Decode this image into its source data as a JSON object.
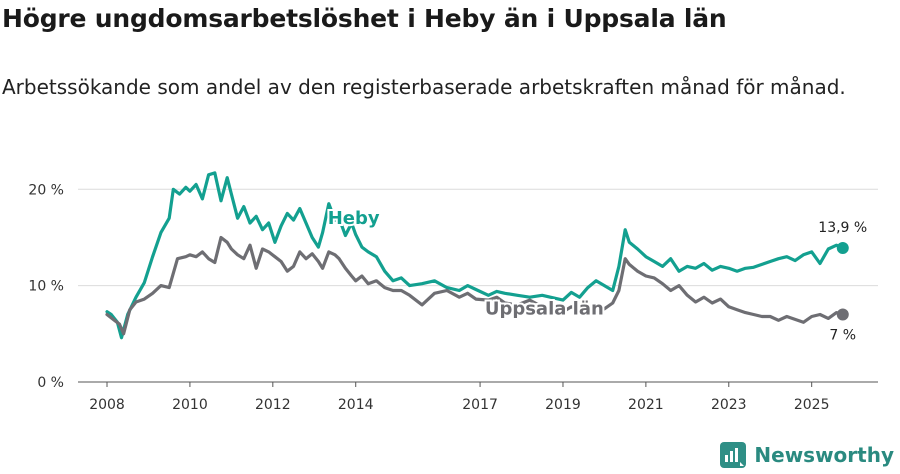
{
  "title": "Högre ungdomsarbetslöshet i Heby än i Uppsala län",
  "subtitle": "Arbetssökande som andel av den registerbaserade arbetskraften månad för månad.",
  "brand": {
    "name": "Newsworthy",
    "icon": "newsworthy-logo-icon",
    "color": "#2a8a80"
  },
  "chart_data": {
    "type": "line",
    "title": "Högre ungdomsarbetslöshet i Heby än i Uppsala län",
    "xlabel": "",
    "ylabel": "",
    "xlim": [
      2007.3,
      2026.6
    ],
    "ylim": [
      0,
      22
    ],
    "y_ticks": [
      0,
      10,
      20
    ],
    "y_tick_labels": [
      "0 %",
      "10 %",
      "20 %"
    ],
    "x_ticks": [
      2008,
      2010,
      2012,
      2014,
      2017,
      2019,
      2021,
      2023,
      2025
    ],
    "x_tick_labels": [
      "2008",
      "2010",
      "2012",
      "2014",
      "2017",
      "2019",
      "2021",
      "2023",
      "2025"
    ],
    "grid": true,
    "series": [
      {
        "name": "Heby",
        "color": "#13a090",
        "end_label": "13,9 %",
        "x": [
          2008.0,
          2008.1,
          2008.25,
          2008.35,
          2008.5,
          2008.7,
          2008.9,
          2009.1,
          2009.3,
          2009.5,
          2009.6,
          2009.75,
          2009.9,
          2010.0,
          2010.15,
          2010.3,
          2010.45,
          2010.6,
          2010.75,
          2010.9,
          2011.0,
          2011.15,
          2011.3,
          2011.45,
          2011.6,
          2011.75,
          2011.9,
          2012.05,
          2012.2,
          2012.35,
          2012.5,
          2012.65,
          2012.8,
          2012.95,
          2013.1,
          2013.2,
          2013.35,
          2013.5,
          2013.6,
          2013.75,
          2013.9,
          2014.0,
          2014.15,
          2014.3,
          2014.5,
          2014.7,
          2014.9,
          2015.1,
          2015.3,
          2015.6,
          2015.9,
          2016.2,
          2016.5,
          2016.7,
          2016.9,
          2017.2,
          2017.4,
          2017.6,
          2017.9,
          2018.2,
          2018.5,
          2018.8,
          2019.0,
          2019.2,
          2019.4,
          2019.6,
          2019.8,
          2020.0,
          2020.2,
          2020.35,
          2020.5,
          2020.6,
          2020.8,
          2021.0,
          2021.2,
          2021.4,
          2021.6,
          2021.8,
          2022.0,
          2022.2,
          2022.4,
          2022.6,
          2022.8,
          2023.0,
          2023.2,
          2023.4,
          2023.6,
          2023.8,
          2024.0,
          2024.2,
          2024.4,
          2024.6,
          2024.8,
          2025.0,
          2025.2,
          2025.4,
          2025.6,
          2025.75
        ],
        "values": [
          7.3,
          7.0,
          6.2,
          4.6,
          7.0,
          8.8,
          10.3,
          13.0,
          15.5,
          17.0,
          20.0,
          19.5,
          20.2,
          19.8,
          20.5,
          19.0,
          21.5,
          21.7,
          18.8,
          21.2,
          19.5,
          17.0,
          18.2,
          16.5,
          17.2,
          15.8,
          16.5,
          14.5,
          16.2,
          17.5,
          16.8,
          18.0,
          16.5,
          15.0,
          14.0,
          15.5,
          18.5,
          16.8,
          17.0,
          15.2,
          16.5,
          15.3,
          14.0,
          13.5,
          13.0,
          11.5,
          10.5,
          10.8,
          10.0,
          10.2,
          10.5,
          9.8,
          9.5,
          10.0,
          9.6,
          9.0,
          9.4,
          9.2,
          9.0,
          8.8,
          9.0,
          8.7,
          8.5,
          9.3,
          8.8,
          9.8,
          10.5,
          10.0,
          9.5,
          12.0,
          15.8,
          14.5,
          13.8,
          13.0,
          12.5,
          12.0,
          12.8,
          11.5,
          12.0,
          11.8,
          12.3,
          11.6,
          12.0,
          11.8,
          11.5,
          11.8,
          11.9,
          12.2,
          12.5,
          12.8,
          13.0,
          12.6,
          13.2,
          13.5,
          12.3,
          13.8,
          14.2,
          13.9
        ]
      },
      {
        "name": "Uppsala län",
        "color": "#6e6e73",
        "end_label": "7 %",
        "x": [
          2008.0,
          2008.15,
          2008.3,
          2008.4,
          2008.55,
          2008.7,
          2008.9,
          2009.1,
          2009.3,
          2009.5,
          2009.7,
          2009.9,
          2010.0,
          2010.15,
          2010.3,
          2010.45,
          2010.6,
          2010.75,
          2010.9,
          2011.0,
          2011.15,
          2011.3,
          2011.45,
          2011.6,
          2011.75,
          2011.9,
          2012.05,
          2012.2,
          2012.35,
          2012.5,
          2012.65,
          2012.8,
          2012.95,
          2013.1,
          2013.2,
          2013.35,
          2013.5,
          2013.6,
          2013.75,
          2013.9,
          2014.0,
          2014.15,
          2014.3,
          2014.5,
          2014.7,
          2014.9,
          2015.1,
          2015.3,
          2015.6,
          2015.9,
          2016.2,
          2016.5,
          2016.7,
          2016.9,
          2017.2,
          2017.4,
          2017.6,
          2017.9,
          2018.2,
          2018.5,
          2018.8,
          2019.0,
          2019.2,
          2019.4,
          2019.6,
          2019.8,
          2020.0,
          2020.2,
          2020.35,
          2020.5,
          2020.6,
          2020.8,
          2021.0,
          2021.2,
          2021.4,
          2021.6,
          2021.8,
          2022.0,
          2022.2,
          2022.4,
          2022.6,
          2022.8,
          2023.0,
          2023.2,
          2023.4,
          2023.6,
          2023.8,
          2024.0,
          2024.2,
          2024.4,
          2024.6,
          2024.8,
          2025.0,
          2025.2,
          2025.4,
          2025.6,
          2025.75
        ],
        "values": [
          7.0,
          6.5,
          6.0,
          5.0,
          7.5,
          8.3,
          8.6,
          9.2,
          10.0,
          9.8,
          12.8,
          13.0,
          13.2,
          13.0,
          13.5,
          12.8,
          12.4,
          15.0,
          14.5,
          13.8,
          13.2,
          12.8,
          14.2,
          11.8,
          13.8,
          13.5,
          13.0,
          12.5,
          11.5,
          12.0,
          13.5,
          12.8,
          13.3,
          12.5,
          11.8,
          13.5,
          13.2,
          12.8,
          11.8,
          11.0,
          10.5,
          11.0,
          10.2,
          10.5,
          9.8,
          9.5,
          9.5,
          9.0,
          8.0,
          9.2,
          9.5,
          8.8,
          9.2,
          8.6,
          8.5,
          8.8,
          8.2,
          8.0,
          8.5,
          7.8,
          7.5,
          7.3,
          7.8,
          7.5,
          7.0,
          7.2,
          7.6,
          8.2,
          9.5,
          12.8,
          12.2,
          11.5,
          11.0,
          10.8,
          10.2,
          9.5,
          10.0,
          9.0,
          8.3,
          8.8,
          8.2,
          8.6,
          7.8,
          7.5,
          7.2,
          7.0,
          6.8,
          6.8,
          6.4,
          6.8,
          6.5,
          6.2,
          6.8,
          7.0,
          6.6,
          7.2,
          7.0
        ]
      }
    ],
    "annotations": [
      {
        "text": "Heby",
        "series": "Heby",
        "at_x": 2013.95,
        "at_y": 16.4
      },
      {
        "text": "Uppsala län",
        "series": "Uppsala län",
        "at_x": 2018.55,
        "at_y": 7.0
      }
    ]
  }
}
